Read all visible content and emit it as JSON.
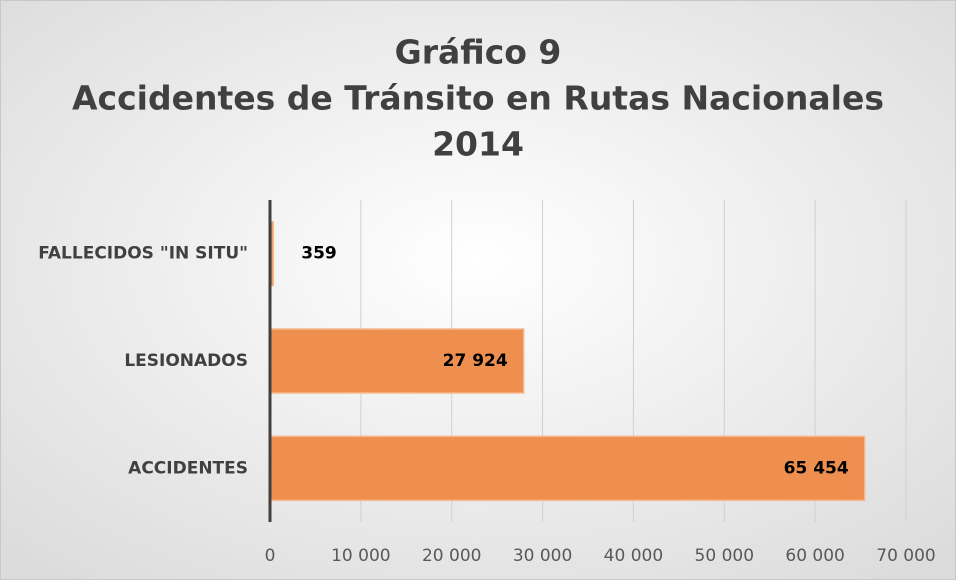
{
  "chart_data": {
    "type": "barh",
    "title": [
      "Gráfico 9",
      "Accidentes de Tránsito en Rutas Nacionales",
      "2014"
    ],
    "categories": [
      "FALLECIDOS \"IN SITU\"",
      "LESIONADOS",
      "ACCIDENTES"
    ],
    "values": [
      359,
      27924,
      65454
    ],
    "value_labels": [
      "359",
      "27 924",
      "65 454"
    ],
    "color": "#ee8f4f",
    "xlim": [
      0,
      70000
    ],
    "xticks": [
      0,
      {
        "value": 10000,
        "label": "10 000"
      },
      {
        "value": 20000,
        "label": "20 000"
      },
      {
        "value": 30000,
        "label": "30 000"
      },
      {
        "value": 40000,
        "label": "40 000"
      },
      {
        "value": 50000,
        "label": "50 000"
      },
      {
        "value": 60000,
        "label": "60 000"
      },
      {
        "value": 70000,
        "label": "70 000"
      }
    ],
    "grid": true
  }
}
